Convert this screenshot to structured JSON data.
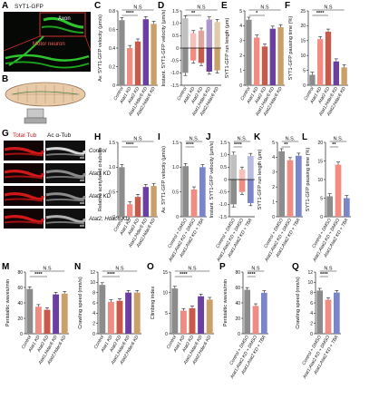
{
  "colors": {
    "control": "#8c8c8c",
    "atat1": "#f08c82",
    "atat2": "#c85a4a",
    "atat1_hdac6": "#6a3fa0",
    "atat2_hdac6": "#c9a06a",
    "tba": "#7a86c8",
    "red_stain": "#d01818",
    "green_stain": "#28c828"
  },
  "panelA": {
    "letter": "A",
    "title": "SYT1-GFP",
    "axon_label": "Axon",
    "motor_label": "Motor neuron"
  },
  "panelB": {
    "letter": "B"
  },
  "panelG": {
    "letter": "G",
    "red_header": "Total Tub",
    "gray_header": "Ac α-Tub",
    "row_labels": [
      "Control",
      "Atat1 KD",
      "Atat2 KD",
      "Atat2; Hdac6 KD"
    ]
  },
  "cats_five": [
    "Control",
    "Atat1 KD",
    "Atat2 KD",
    "Atat1;Hdac6 KD",
    "Atat2;Hdac6 KD"
  ],
  "cats_three": [
    "Control + DMSO",
    "Atat1;Atat2 KD + DMSO",
    "Atat1;Atat2 KD + TBA"
  ],
  "panels": {
    "C": {
      "letter": "C",
      "ylabel": "Av. SYT1-GFP velocity (μm/s)",
      "ylim": [
        0,
        0.8
      ],
      "ticks": [
        "0",
        "0.2",
        "0.4",
        "0.6",
        "0.8"
      ],
      "sig": "****",
      "ns": "N.S"
    },
    "D": {
      "letter": "D",
      "ylabel": "Instant. SYT1-GFP velocity (μm/s)",
      "ylim": [
        -1.5,
        1.5
      ],
      "ticks": [
        "-1.5",
        "-1.0",
        "-0.5",
        "0",
        "0.5",
        "1.0",
        "1.5"
      ],
      "sig": "**",
      "ns": "N.S"
    },
    "E": {
      "letter": "E",
      "ylabel": "SYT1-GFP run length (μm)",
      "ylim": [
        0,
        5
      ],
      "ticks": [
        "0",
        "1",
        "2",
        "3",
        "4",
        "5"
      ],
      "sig": "*",
      "ns": "N.S"
    },
    "F": {
      "letter": "F",
      "ylabel": "SYT1-GFP pausing time (%)",
      "ylim": [
        0,
        25
      ],
      "ticks": [
        "0",
        "5",
        "10",
        "15",
        "20",
        "25"
      ],
      "sig": "****",
      "ns": "N.S"
    },
    "H": {
      "letter": "H",
      "ylabel": "Relative acetylated α-tubulin",
      "ylim": [
        0,
        1.5
      ],
      "ticks": [
        "0",
        "0.5",
        "1.0",
        "1.5"
      ],
      "sig": "****",
      "ns": "N.S"
    },
    "I": {
      "letter": "I",
      "ylabel": "Av. SYT1-GFP velocity (μm/s)",
      "ylim": [
        0,
        1.5
      ],
      "ticks": [
        "0",
        "0.5",
        "1.0",
        "1.5"
      ],
      "sig": "****",
      "ns": "N.S."
    },
    "J": {
      "letter": "J",
      "ylabel": "Instant. SYT1-GFP velocity (μm/s)",
      "ylim": [
        -1.5,
        1.5
      ],
      "ticks": [
        "-1.5",
        "-1.0",
        "-0.5",
        "0",
        "0.5",
        "1.0",
        "1.5"
      ],
      "sig": "****",
      "ns": "N.S."
    },
    "K": {
      "letter": "K",
      "ylabel": "SYT1-GFP run length (μm)",
      "ylim": [
        0,
        5
      ],
      "ticks": [
        "0",
        "1",
        "2",
        "3",
        "4",
        "5"
      ],
      "sig": "**",
      "ns": "N.S."
    },
    "L": {
      "letter": "L",
      "ylabel": "SYT1-GFP pausing time (%)",
      "ylim": [
        0,
        20
      ],
      "ticks": [
        "0",
        "5",
        "10",
        "15",
        "20"
      ],
      "sig": "**",
      "ns": "N.S."
    },
    "M": {
      "letter": "M",
      "ylabel": "Peristaltic waves/min",
      "ylim": [
        0,
        80
      ],
      "ticks": [
        "0",
        "20",
        "40",
        "60",
        "80"
      ],
      "sig": "****",
      "ns": "N.S"
    },
    "N": {
      "letter": "N",
      "ylabel": "Crawling speed (mm/s)",
      "ylim": [
        0,
        12
      ],
      "ticks": [
        "0",
        "2",
        "4",
        "6",
        "8",
        "10",
        "12"
      ],
      "sig": "****",
      "ns": "N.S"
    },
    "O": {
      "letter": "O",
      "ylabel": "Climbing index",
      "ylim": [
        0,
        15
      ],
      "ticks": [
        "0",
        "5",
        "10",
        "15"
      ],
      "sig": "****",
      "ns": "N.S"
    },
    "P": {
      "letter": "P",
      "ylabel": "Peristaltic waves/min",
      "ylim": [
        0,
        80
      ],
      "ticks": [
        "0",
        "20",
        "40",
        "60",
        "80"
      ],
      "sig": "****",
      "ns": "N.S"
    },
    "Q": {
      "letter": "Q",
      "ylabel": "Crawling speed (mm/s)",
      "ylim": [
        0,
        12
      ],
      "ticks": [
        "0",
        "2",
        "4",
        "6",
        "8",
        "10",
        "12"
      ],
      "sig": "****",
      "ns": "N.S"
    }
  },
  "chart_data": [
    {
      "panel": "C",
      "type": "bar",
      "categories": [
        "Control",
        "Atat1 KD",
        "Atat2 KD",
        "Atat1;Hdac6 KD",
        "Atat2;Hdac6 KD"
      ],
      "values": [
        0.7,
        0.4,
        0.47,
        0.71,
        0.66
      ],
      "ylim": [
        0,
        0.8
      ]
    },
    {
      "panel": "D",
      "type": "bar",
      "categories": [
        "Control",
        "Atat1 KD",
        "Atat2 KD",
        "Atat1;Hdac6 KD",
        "Atat2;Hdac6 KD"
      ],
      "series": [
        {
          "values": [
            1.2,
            0.6,
            0.7,
            1.15,
            1.05
          ]
        },
        {
          "values": [
            -1.0,
            -0.5,
            -0.6,
            -0.95,
            -0.9
          ]
        }
      ],
      "ylim": [
        -1.5,
        1.5
      ]
    },
    {
      "panel": "E",
      "type": "bar",
      "categories": [
        "Control",
        "Atat1 KD",
        "Atat2 KD",
        "Atat1;Hdac6 KD",
        "Atat2;Hdac6 KD"
      ],
      "values": [
        4.4,
        3.2,
        2.6,
        3.8,
        3.9
      ],
      "ylim": [
        0,
        5
      ]
    },
    {
      "panel": "F",
      "type": "bar",
      "categories": [
        "Control",
        "Atat1 KD",
        "Atat2 KD",
        "Atat1;Hdac6 KD",
        "Atat2;Hdac6 KD"
      ],
      "values": [
        3.5,
        15.5,
        18.0,
        8.0,
        6.0
      ],
      "ylim": [
        0,
        25
      ]
    },
    {
      "panel": "H",
      "type": "bar",
      "categories": [
        "Control",
        "Atat1 KD",
        "Atat2 KD",
        "Atat1;Hdac6 KD",
        "Atat2;Hdac6 KD"
      ],
      "values": [
        1.0,
        0.25,
        0.4,
        0.6,
        0.62
      ],
      "ylim": [
        0,
        1.5
      ]
    },
    {
      "panel": "I",
      "type": "bar",
      "categories": [
        "Control + DMSO",
        "Atat1;Atat2 KD + DMSO",
        "Atat1;Atat2 KD + TBA"
      ],
      "values": [
        1.02,
        0.55,
        1.0
      ],
      "ylim": [
        0,
        1.5
      ]
    },
    {
      "panel": "J",
      "type": "bar",
      "categories": [
        "Control + DMSO",
        "Atat1;Atat2 KD + DMSO",
        "Atat1;Atat2 KD + TBA"
      ],
      "series": [
        {
          "values": [
            1.0,
            0.4,
            0.95
          ]
        },
        {
          "values": [
            -1.0,
            -0.5,
            -0.95
          ]
        }
      ],
      "ylim": [
        -1.5,
        1.5
      ]
    },
    {
      "panel": "K",
      "type": "bar",
      "categories": [
        "Control + DMSO",
        "Atat1;Atat2 KD + DMSO",
        "Atat1;Atat2 KD + TBA"
      ],
      "values": [
        4.4,
        3.8,
        4.1
      ],
      "ylim": [
        0,
        5
      ]
    },
    {
      "panel": "L",
      "type": "bar",
      "categories": [
        "Control + DMSO",
        "Atat1;Atat2 KD + DMSO",
        "Atat1;Atat2 KD + TBA"
      ],
      "values": [
        5.5,
        14.0,
        5.0
      ],
      "ylim": [
        0,
        20
      ]
    },
    {
      "panel": "M",
      "type": "bar",
      "categories": [
        "Control",
        "Atat1 KD",
        "Atat2 KD",
        "Atat1;Hdac6 KD",
        "Atat2;Hdac6 KD"
      ],
      "values": [
        58,
        35,
        31,
        51,
        52
      ],
      "ylim": [
        0,
        80
      ]
    },
    {
      "panel": "N",
      "type": "bar",
      "categories": [
        "Control",
        "Atat1 KD",
        "Atat2 KD",
        "Atat1;Hdac6 KD",
        "Atat2;Hdac6 KD"
      ],
      "values": [
        9.5,
        6.2,
        6.4,
        8.0,
        8.0
      ],
      "ylim": [
        0,
        12
      ]
    },
    {
      "panel": "O",
      "type": "bar",
      "categories": [
        "Control",
        "Atat1 KD",
        "Atat2 KD",
        "Atat1;Hdac6 KD",
        "Atat2;Hdac6 KD"
      ],
      "values": [
        11.0,
        5.6,
        6.2,
        9.1,
        8.3
      ],
      "ylim": [
        0,
        15
      ]
    },
    {
      "panel": "P",
      "type": "bar",
      "categories": [
        "Control + DMSO",
        "Atat1;Atat2 KD + DMSO",
        "Atat1;Atat2 KD + TBA"
      ],
      "values": [
        57,
        36,
        53
      ],
      "ylim": [
        0,
        80
      ]
    },
    {
      "panel": "Q",
      "type": "bar",
      "categories": [
        "Control + DMSO",
        "Atat1;Atat2 KD + DMSO",
        "Atat1;Atat2 KD + TBA"
      ],
      "values": [
        8.4,
        6.6,
        8.0
      ],
      "ylim": [
        0,
        12
      ]
    }
  ]
}
